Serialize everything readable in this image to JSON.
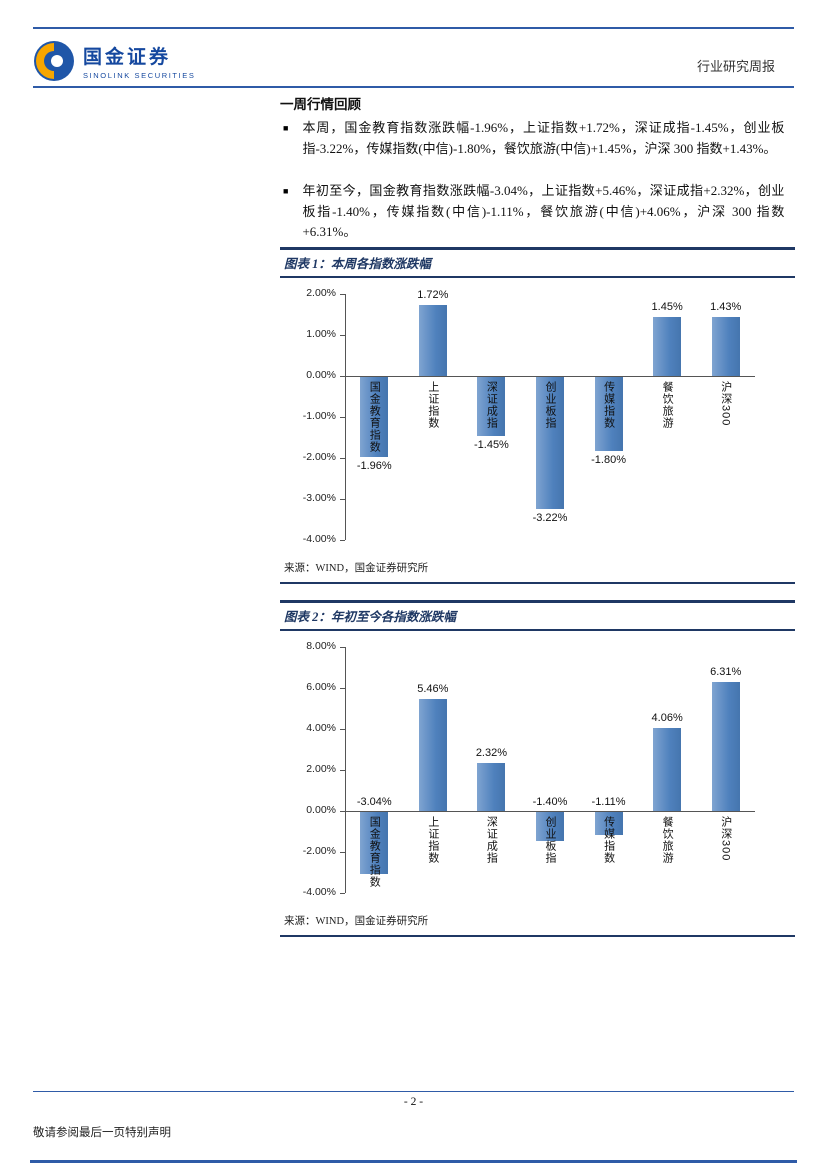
{
  "page": {
    "header": {
      "brand_cn": "国金证券",
      "brand_en": "SINOLINK SECURITIES",
      "doc_type": "行业研究周报"
    },
    "section_title": "一周行情回顾",
    "bullets": [
      "本周，国金教育指数涨跌幅-1.96%，上证指数+1.72%，深证成指-1.45%，创业板指-3.22%，传媒指数(中信)-1.80%，餐饮旅游(中信)+1.45%，沪深 300 指数+1.43%。",
      "年初至今，国金教育指数涨跌幅-3.04%，上证指数+5.46%，深证成指+2.32%，创业板指-1.40%，传媒指数(中信)-1.11%，餐饮旅游(中信)+4.06%，沪深 300 指数+6.31%。"
    ],
    "figures": [
      {
        "title": "图表 1：本周各指数涨跌幅",
        "source": "来源：WIND，国金证券研究所"
      },
      {
        "title": "图表 2：年初至今各指数涨跌幅",
        "source": "来源：WIND，国金证券研究所"
      }
    ],
    "footer": {
      "page_number": "- 2 -",
      "disclaimer": "敬请参阅最后一页特别声明"
    }
  },
  "chart_data": [
    {
      "type": "bar",
      "title": "本周各指数涨跌幅",
      "categories": [
        "国金教育指数",
        "上证指数",
        "深证成指",
        "创业板指",
        "传媒指数",
        "餐饮旅游",
        "沪深300"
      ],
      "values": [
        -1.96,
        1.72,
        -1.45,
        -3.22,
        -1.8,
        1.45,
        1.43
      ],
      "labels": [
        "-1.96%",
        "1.72%",
        "-1.45%",
        "-3.22%",
        "-1.80%",
        "1.45%",
        "1.43%"
      ],
      "ylim": [
        -4,
        2
      ],
      "ytick_step": 1,
      "grid": false,
      "legend": "none",
      "bar_color": "#4F81BD",
      "neg_label_position": "end"
    },
    {
      "type": "bar",
      "title": "年初至今各指数涨跌幅",
      "categories": [
        "国金教育指数",
        "上证指数",
        "深证成指",
        "创业板指",
        "传媒指数",
        "餐饮旅游",
        "沪深300"
      ],
      "values": [
        -3.04,
        5.46,
        2.32,
        -1.4,
        -1.11,
        4.06,
        6.31
      ],
      "labels": [
        "-3.04%",
        "5.46%",
        "2.32%",
        "-1.40%",
        "-1.11%",
        "4.06%",
        "6.31%"
      ],
      "ylim": [
        -4,
        8
      ],
      "ytick_step": 2,
      "grid": false,
      "legend": "none",
      "bar_color": "#4F81BD",
      "neg_label_position": "axis"
    }
  ]
}
